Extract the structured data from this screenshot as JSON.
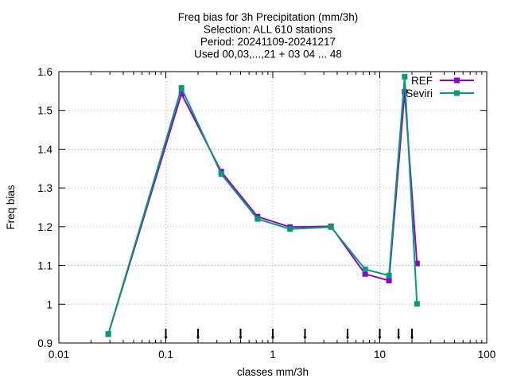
{
  "chart_data": {
    "type": "line",
    "title_lines": [
      "Freq bias  for 3h Precipitation (mm/3h)",
      "Selection: ALL    610 stations",
      "Period: 20241109-20241217",
      "Used 00,03,...,21 + 03 04 ... 48"
    ],
    "xlabel": "classes mm/3h",
    "ylabel": "Freq bias",
    "x_scale": "log",
    "xlim": [
      0.01,
      100
    ],
    "ylim": [
      0.9,
      1.6
    ],
    "x_ticks": [
      {
        "value": 0.01,
        "label": "0.01"
      },
      {
        "value": 0.1,
        "label": "0.1"
      },
      {
        "value": 1,
        "label": "1"
      },
      {
        "value": 10,
        "label": "10"
      },
      {
        "value": 100,
        "label": "100"
      }
    ],
    "y_ticks": [
      {
        "value": 0.9,
        "label": "0.9"
      },
      {
        "value": 1.0,
        "label": "1"
      },
      {
        "value": 1.1,
        "label": "1.1"
      },
      {
        "value": 1.2,
        "label": "1.2"
      },
      {
        "value": 1.3,
        "label": "1.3"
      },
      {
        "value": 1.4,
        "label": "1.4"
      },
      {
        "value": 1.5,
        "label": "1.5"
      },
      {
        "value": 1.6,
        "label": "1.6"
      }
    ],
    "grid": true,
    "legend_position": "top-right",
    "threshold_markers": [
      0.1,
      0.2,
      0.5,
      1,
      2,
      5,
      10,
      15,
      20
    ],
    "series": [
      {
        "name": "REF",
        "color": "#9400d3",
        "x": [
          0.029,
          0.14,
          0.33,
          0.72,
          1.45,
          3.5,
          7.3,
          12.2,
          17.1,
          22.3
        ],
        "y": [
          0.923,
          1.543,
          1.342,
          1.226,
          1.199,
          1.201,
          1.078,
          1.061,
          1.548,
          1.105
        ]
      },
      {
        "name": "Seviri",
        "color": "#009e73",
        "x": [
          0.029,
          0.14,
          0.33,
          0.72,
          1.45,
          3.5,
          7.3,
          12.2,
          17.1,
          22.3
        ],
        "y": [
          0.923,
          1.558,
          1.336,
          1.22,
          1.194,
          1.199,
          1.09,
          1.074,
          1.587,
          1.001
        ]
      }
    ]
  }
}
